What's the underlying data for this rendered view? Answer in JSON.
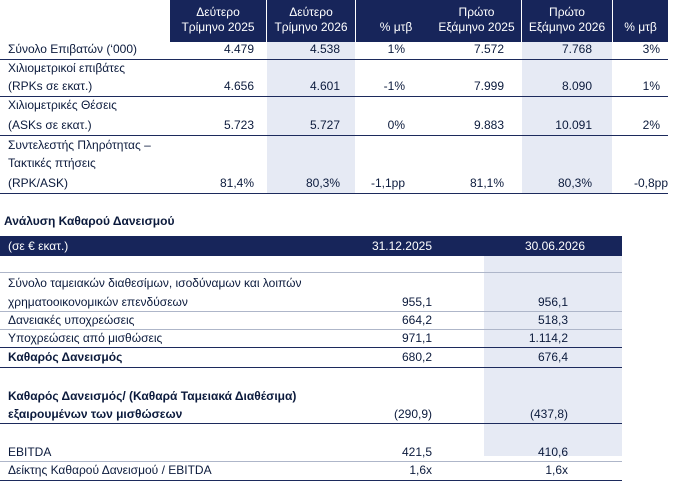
{
  "traffic": {
    "headers": {
      "q2_2025": [
        "Δεύτερο",
        "Τρίμηνο 2025"
      ],
      "q2_2026": [
        "Δεύτερο",
        "Τρίμηνο 2026"
      ],
      "pct": "% μτβ",
      "h1_2025": [
        "Πρώτο",
        "Εξάμηνο 2025"
      ],
      "h1_2026": [
        "Πρώτο",
        "Εξάμηνο 2026"
      ],
      "pct2": "% μτβ"
    },
    "rows": [
      {
        "label": [
          "Σύνολο Επιβατών (‘000)"
        ],
        "values": [
          "4.479",
          "4.538",
          "1%",
          "7.572",
          "7.768",
          "3%"
        ]
      },
      {
        "label": [
          "Χιλιομετρικοί επιβάτες",
          "(RPKs σε εκατ.)"
        ],
        "values": [
          "4.656",
          "4.601",
          "-1%",
          "7.999",
          "8.090",
          "1%"
        ]
      },
      {
        "label": [
          "Χιλιομετρικές Θέσεις",
          "(ASKs σε εκατ.)"
        ],
        "values": [
          "5.723",
          "5.727",
          "0%",
          "9.883",
          "10.091",
          "2%"
        ]
      },
      {
        "label": [
          "Συντελεστής Πληρότητας –",
          "Τακτικές πτήσεις",
          "(RPK/ASK)"
        ],
        "values": [
          "81,4%",
          "80,3%",
          "-1,1pp",
          "81,1%",
          "80,3%",
          "-0,8pp"
        ]
      }
    ]
  },
  "debt": {
    "section_title": "Ανάλυση Καθαρού Δανεισμού",
    "unit_label": "(σε € εκατ.)",
    "col1": "31.12.2025",
    "col2": "30.06.2026",
    "rows": [
      {
        "label": "Σύνολο ταμειακών διαθεσίμων, ισοδύναμων και λοιπών",
        "v1": "",
        "v2": ""
      },
      {
        "label": "χρηματοοικονομικών επενδύσεων",
        "v1": "955,1",
        "v2": "956,1"
      },
      {
        "label": "Δανειακές υποχρεώσεις",
        "v1": "664,2",
        "v2": "518,3"
      },
      {
        "label": "Υποχρεώσεις από μισθώσεις",
        "v1": "971,1",
        "v2": "1.114,2"
      },
      {
        "label": "Καθαρός Δανεισμός",
        "v1": "680,2",
        "v2": "676,4"
      },
      {
        "label": "Καθαρός Δανεισμός/ (Καθαρά Ταμειακά Διαθέσιμα)",
        "v1": "",
        "v2": ""
      },
      {
        "label": "εξαιρουμένων των μισθώσεων",
        "v1": "(290,9)",
        "v2": "(437,8)"
      },
      {
        "label": "EBITDA",
        "v1": "421,5",
        "v2": "410,6"
      },
      {
        "label": "Δείκτης Καθαρού Δανεισμού / EBITDA",
        "v1": "1,6x",
        "v2": "1,6x"
      }
    ]
  }
}
